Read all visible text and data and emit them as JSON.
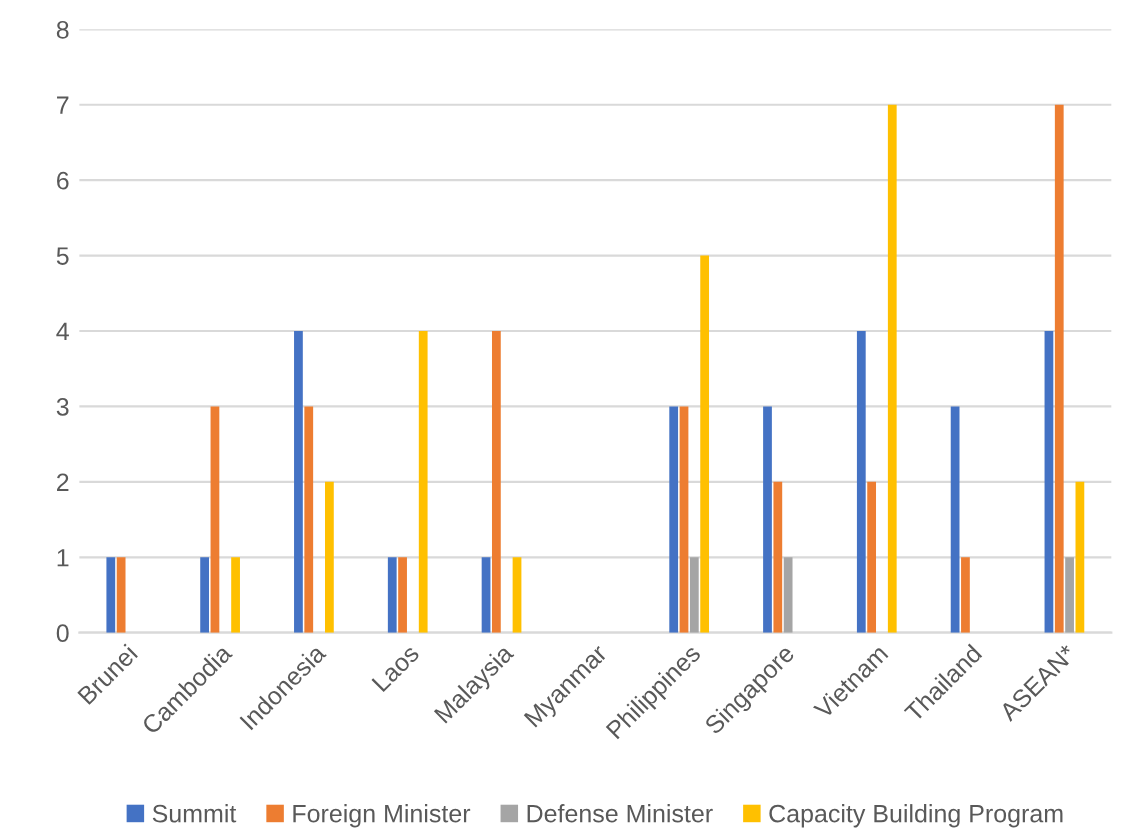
{
  "chart_data": {
    "type": "bar",
    "categories": [
      "Brunei",
      "Cambodia",
      "Indonesia",
      "Laos",
      "Malaysia",
      "Myanmar",
      "Philippines",
      "Singapore",
      "Vietnam",
      "Thailand",
      "ASEAN*"
    ],
    "series": [
      {
        "name": "Summit",
        "color": "#4472c4",
        "values": [
          1,
          1,
          4,
          1,
          1,
          0,
          3,
          3,
          4,
          3,
          4
        ]
      },
      {
        "name": "Foreign Minister",
        "color": "#ed7d31",
        "values": [
          1,
          3,
          3,
          1,
          4,
          0,
          3,
          2,
          2,
          1,
          7
        ]
      },
      {
        "name": "Defense Minister",
        "color": "#a5a5a5",
        "values": [
          0,
          0,
          0,
          0,
          0,
          0,
          1,
          1,
          0,
          0,
          1
        ]
      },
      {
        "name": "Capacity Building Program",
        "color": "#ffc000",
        "values": [
          0,
          1,
          2,
          4,
          1,
          0,
          5,
          0,
          7,
          0,
          2
        ]
      }
    ],
    "ylim": [
      0,
      8
    ],
    "yticks": [
      0,
      1,
      2,
      3,
      4,
      5,
      6,
      7,
      8
    ],
    "grid": "y",
    "legend": "bottom"
  }
}
